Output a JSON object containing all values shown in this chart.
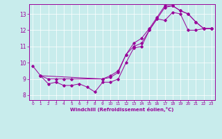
{
  "title": "",
  "xlabel": "Windchill (Refroidissement éolien,°C)",
  "background_color": "#c8ecec",
  "line_color": "#990099",
  "xlim": [
    -0.5,
    23.5
  ],
  "ylim": [
    7.7,
    13.6
  ],
  "yticks": [
    8,
    9,
    10,
    11,
    12,
    13
  ],
  "xticks": [
    0,
    1,
    2,
    3,
    4,
    5,
    6,
    7,
    8,
    9,
    10,
    11,
    12,
    13,
    14,
    15,
    16,
    17,
    18,
    19,
    20,
    21,
    22,
    23
  ],
  "series1_x": [
    0,
    1,
    2,
    3,
    4,
    5,
    6,
    7,
    8,
    9,
    10,
    11,
    12,
    13,
    14,
    15,
    16,
    17,
    18,
    19,
    20,
    21,
    22,
    23
  ],
  "series1_y": [
    9.8,
    9.2,
    8.7,
    8.8,
    8.6,
    8.6,
    8.7,
    8.5,
    8.2,
    8.8,
    8.8,
    9.0,
    10.0,
    10.9,
    11.0,
    12.0,
    12.7,
    12.6,
    13.1,
    13.0,
    12.0,
    12.0,
    12.1,
    12.1
  ],
  "series2_x": [
    1,
    2,
    3,
    4,
    5,
    9,
    10,
    11,
    12,
    13,
    14,
    15,
    16,
    17,
    18,
    19,
    20,
    21,
    22,
    23
  ],
  "series2_y": [
    9.2,
    9.0,
    9.0,
    9.0,
    9.0,
    9.0,
    9.1,
    9.4,
    10.5,
    11.0,
    11.2,
    12.0,
    12.7,
    13.4,
    13.5,
    13.2,
    13.0,
    12.5,
    12.1,
    12.1
  ],
  "series3_x": [
    1,
    9,
    10,
    11,
    12,
    13,
    14,
    15,
    16,
    17,
    18,
    19,
    20,
    21,
    22,
    23
  ],
  "series3_y": [
    9.2,
    9.0,
    9.2,
    9.5,
    10.5,
    11.2,
    11.5,
    12.1,
    12.8,
    13.5,
    13.5,
    13.2,
    13.0,
    12.5,
    12.1,
    12.1
  ]
}
